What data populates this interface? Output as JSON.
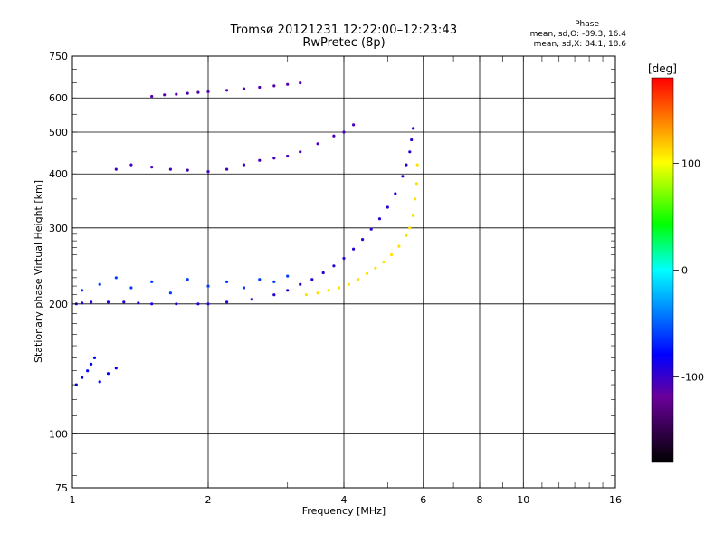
{
  "chart_data": {
    "type": "scatter",
    "title": "Tromsø 20121231 12:22:00–12:23:43",
    "subtitle": "RwPretec (8p)",
    "xlabel": "Frequency [MHz]",
    "ylabel": "Stationary phase Virtual Height [km]",
    "x_scale": "log",
    "y_scale": "log",
    "xlim": [
      1,
      16
    ],
    "ylim": [
      75,
      750
    ],
    "xticks": [
      "1",
      "2",
      "4",
      "6",
      "8",
      "10",
      "16"
    ],
    "yticks": [
      "75",
      "100",
      "200",
      "300",
      "400",
      "500",
      "600",
      "750"
    ],
    "grid": true,
    "phase_stats": {
      "title": "Phase",
      "o_line": "mean, sd,O: -89.3, 16.4",
      "x_line": "mean, sd,X:  84.1, 18.6"
    },
    "colorbar": {
      "label": "[deg]",
      "ticks": [
        "100",
        "0",
        "-100"
      ],
      "tick_values": [
        100,
        0,
        -100
      ],
      "range": [
        -180,
        180
      ],
      "colors": [
        "#000000",
        "#6a009a",
        "#0000ff",
        "#00ffff",
        "#00ff00",
        "#ffff00",
        "#ff0000"
      ]
    },
    "traces": [
      {
        "name": "o-trace",
        "phase": -95,
        "x": [
          1.02,
          1.05,
          1.1,
          1.2,
          1.3,
          1.4,
          1.5,
          1.7,
          1.9,
          2.0,
          2.2,
          2.5,
          2.8,
          3.0,
          3.2,
          3.4,
          3.6,
          3.8,
          4.0,
          4.2,
          4.4,
          4.6,
          4.8,
          5.0,
          5.2,
          5.4,
          5.5,
          5.6,
          5.65,
          5.7
        ],
        "y": [
          200,
          201,
          202,
          202,
          202,
          201,
          200,
          200,
          200,
          200,
          202,
          205,
          210,
          215,
          222,
          228,
          236,
          245,
          255,
          268,
          282,
          298,
          315,
          335,
          360,
          395,
          420,
          450,
          480,
          510
        ]
      },
      {
        "name": "x-trace",
        "phase": 110,
        "x": [
          3.3,
          3.5,
          3.7,
          3.9,
          4.1,
          4.3,
          4.5,
          4.7,
          4.9,
          5.1,
          5.3,
          5.5,
          5.6,
          5.7,
          5.75,
          5.8,
          5.82
        ],
        "y": [
          210,
          212,
          215,
          218,
          222,
          228,
          235,
          242,
          250,
          260,
          272,
          288,
          300,
          320,
          350,
          380,
          420
        ]
      },
      {
        "name": "lower-scatter",
        "phase": -60,
        "x": [
          1.05,
          1.15,
          1.25,
          1.35,
          1.5,
          1.65,
          1.8,
          2.0,
          2.2,
          2.4,
          2.6,
          2.8,
          3.0
        ],
        "y": [
          215,
          222,
          230,
          218,
          225,
          212,
          228,
          220,
          225,
          218,
          228,
          225,
          232
        ]
      },
      {
        "name": "mid-trace",
        "phase": -105,
        "x": [
          1.25,
          1.35,
          1.5,
          1.65,
          1.8,
          2.0,
          2.2,
          2.4,
          2.6,
          2.8,
          3.0,
          3.2,
          3.5,
          3.8,
          4.0,
          4.2
        ],
        "y": [
          410,
          420,
          415,
          410,
          408,
          405,
          410,
          420,
          430,
          435,
          440,
          450,
          470,
          490,
          500,
          520
        ]
      },
      {
        "name": "upper-trace",
        "phase": -110,
        "x": [
          1.5,
          1.6,
          1.7,
          1.8,
          1.9,
          2.0,
          2.2,
          2.4,
          2.6,
          2.8,
          3.0,
          3.2
        ],
        "y": [
          605,
          610,
          612,
          615,
          618,
          620,
          625,
          630,
          635,
          640,
          645,
          650
        ]
      },
      {
        "name": "low-freq-cluster",
        "phase": -80,
        "x": [
          1.02,
          1.05,
          1.08,
          1.1,
          1.12,
          1.15,
          1.2,
          1.25
        ],
        "y": [
          130,
          135,
          140,
          145,
          150,
          132,
          138,
          142
        ]
      }
    ]
  }
}
